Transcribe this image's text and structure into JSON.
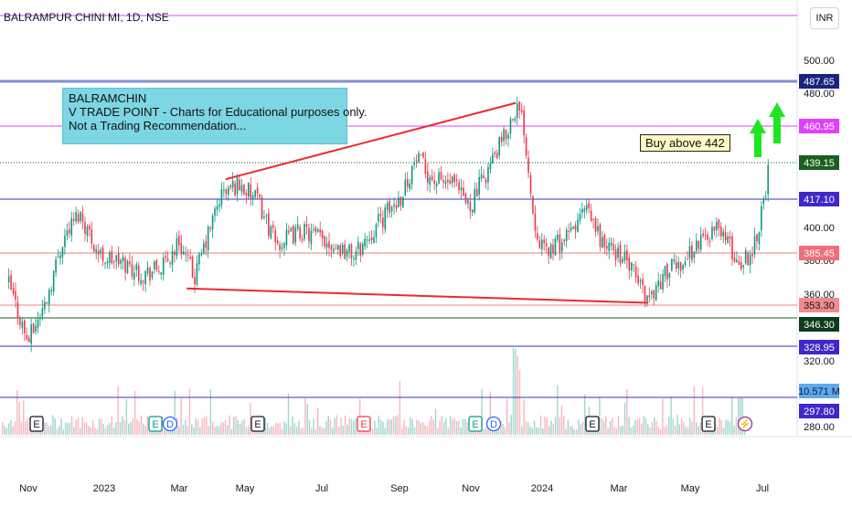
{
  "header": {
    "symbol_title": "BALRAMPUR CHINI MI, 1D, NSE",
    "currency_button": "INR"
  },
  "annotations": {
    "note_lines": [
      "BALRAMCHIN",
      "V TRADE POINT - Charts for Educational purposes only.",
      "Not a Trading Recommendation..."
    ],
    "buy_label": "Buy above 442"
  },
  "colors": {
    "up_candle": "#089981",
    "down_candle": "#f23645",
    "trendline": "#f0282e",
    "magenta_level": "#e040fb",
    "blue_level": "#3f28c8",
    "salmon_level": "#f08080",
    "green_level": "#1b5e20",
    "arrow": "#1ee61e"
  },
  "price_axis": {
    "ticks": [
      "500.00",
      "480.00",
      "400.00",
      "380.00",
      "360.00",
      "320.00",
      "280.00"
    ],
    "level_labels": [
      {
        "text": "487.65",
        "bg": "#1a237e",
        "fg": "#ffffff"
      },
      {
        "text": "460.95",
        "bg": "#e040fb",
        "fg": "#ffffff"
      },
      {
        "text": "439.15",
        "bg": "#1b5e20",
        "fg": "#ffffff"
      },
      {
        "text": "417.10",
        "bg": "#3f28c8",
        "fg": "#ffffff"
      },
      {
        "text": "385.45",
        "bg": "#f26d7d",
        "fg": "#ffffff"
      },
      {
        "text": "353.30",
        "bg": "#f28b8b",
        "fg": "#131722"
      },
      {
        "text": "346.30",
        "bg": "#0d3b1e",
        "fg": "#ffffff"
      },
      {
        "text": "328.95",
        "bg": "#3f28c8",
        "fg": "#ffffff"
      },
      {
        "text": "10.571 M",
        "bg": "#5ea9f0",
        "fg": "#131722"
      },
      {
        "text": "297.80",
        "bg": "#3f28c8",
        "fg": "#ffffff"
      }
    ]
  },
  "time_axis": {
    "labels": [
      "Nov",
      "2023",
      "Mar",
      "May",
      "Jul",
      "Sep",
      "Nov",
      "2024",
      "Mar",
      "May",
      "Jul"
    ]
  },
  "events": {
    "markers": [
      "E",
      "E",
      "D",
      "E",
      "E",
      "E",
      "D",
      "E",
      "E",
      "⚡"
    ]
  },
  "chart_data": {
    "type": "candlestick",
    "title": "BALRAMPUR CHINI MI, 1D, NSE",
    "currency": "INR",
    "ylim": [
      275,
      525
    ],
    "horizontal_levels": [
      497,
      487.65,
      460.95,
      439.15,
      417.1,
      385.45,
      353.3,
      346.3,
      328.95,
      297.8
    ],
    "trendlines": [
      {
        "from": {
          "date": "2023-04-14",
          "price": 431
        },
        "to": {
          "date": "2023-11-30",
          "price": 484
        }
      },
      {
        "from": {
          "date": "2023-03-14",
          "price": 355
        },
        "to": {
          "date": "2024-03-14",
          "price": 345
        }
      }
    ],
    "price_path": [
      {
        "date": "2022-10-24",
        "close": 358
      },
      {
        "date": "2022-11-08",
        "close": 318
      },
      {
        "date": "2022-11-22",
        "close": 345
      },
      {
        "date": "2022-12-06",
        "close": 390
      },
      {
        "date": "2022-12-19",
        "close": 408
      },
      {
        "date": "2023-01-04",
        "close": 378
      },
      {
        "date": "2023-01-24",
        "close": 372
      },
      {
        "date": "2023-02-08",
        "close": 365
      },
      {
        "date": "2023-02-24",
        "close": 370
      },
      {
        "date": "2023-03-08",
        "close": 388
      },
      {
        "date": "2023-03-20",
        "close": 362
      },
      {
        "date": "2023-04-10",
        "close": 420
      },
      {
        "date": "2023-04-24",
        "close": 428
      },
      {
        "date": "2023-05-10",
        "close": 415
      },
      {
        "date": "2023-05-24",
        "close": 385
      },
      {
        "date": "2023-06-12",
        "close": 395
      },
      {
        "date": "2023-07-04",
        "close": 388
      },
      {
        "date": "2023-07-25",
        "close": 378
      },
      {
        "date": "2023-08-14",
        "close": 402
      },
      {
        "date": "2023-08-30",
        "close": 418
      },
      {
        "date": "2023-09-12",
        "close": 445
      },
      {
        "date": "2023-09-26",
        "close": 430
      },
      {
        "date": "2023-10-10",
        "close": 428
      },
      {
        "date": "2023-10-24",
        "close": 412
      },
      {
        "date": "2023-11-08",
        "close": 438
      },
      {
        "date": "2023-11-22",
        "close": 462
      },
      {
        "date": "2023-11-30",
        "close": 482
      },
      {
        "date": "2023-12-06",
        "close": 470
      },
      {
        "date": "2023-12-14",
        "close": 405
      },
      {
        "date": "2023-12-22",
        "close": 380
      },
      {
        "date": "2024-01-10",
        "close": 390
      },
      {
        "date": "2024-01-24",
        "close": 410
      },
      {
        "date": "2024-02-08",
        "close": 385
      },
      {
        "date": "2024-02-22",
        "close": 378
      },
      {
        "date": "2024-03-06",
        "close": 360
      },
      {
        "date": "2024-03-14",
        "close": 348
      },
      {
        "date": "2024-03-28",
        "close": 366
      },
      {
        "date": "2024-04-12",
        "close": 375
      },
      {
        "date": "2024-04-26",
        "close": 390
      },
      {
        "date": "2024-05-10",
        "close": 398
      },
      {
        "date": "2024-05-24",
        "close": 372
      },
      {
        "date": "2024-06-04",
        "close": 380
      },
      {
        "date": "2024-06-11",
        "close": 405
      },
      {
        "date": "2024-06-18",
        "close": 440
      }
    ]
  }
}
